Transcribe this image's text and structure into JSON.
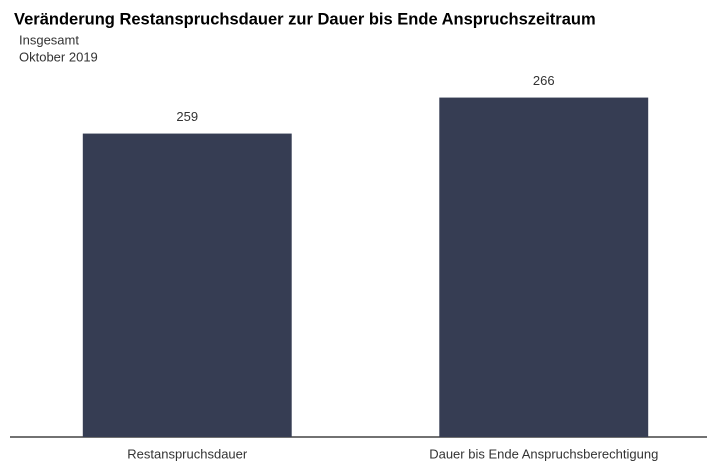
{
  "chart_data": {
    "type": "bar",
    "title": "Veränderung Restanspruchsdauer zur Dauer bis Ende Anspruchszeitraum",
    "subtitle": "Insgesamt",
    "period": "Oktober 2019",
    "categories": [
      "Restanspruchsdauer",
      "Dauer bis Ende Anspruchsberechtigung"
    ],
    "values": [
      259,
      266
    ],
    "color": "#363d53",
    "ylim": [
      200,
      270
    ]
  }
}
